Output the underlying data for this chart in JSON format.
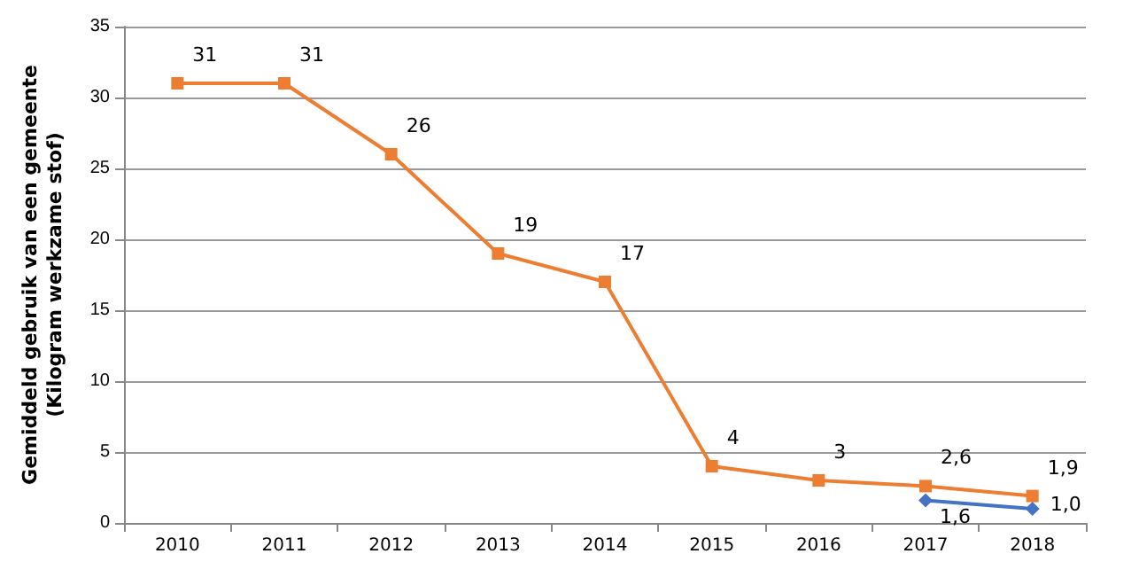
{
  "chart_data": {
    "type": "line",
    "ylabel": "Gemiddeld gebruik van een gemeente\n(Kilogram werkzame stof)",
    "categories": [
      "2010",
      "2011",
      "2012",
      "2013",
      "2014",
      "2015",
      "2016",
      "2017",
      "2018"
    ],
    "series": [
      {
        "color": "#ed7d31",
        "marker": "square",
        "values": [
          31,
          31,
          26,
          19,
          17,
          4,
          3,
          2.6,
          1.9
        ],
        "value_labels": [
          "31",
          "31",
          "26",
          "19",
          "17",
          "4",
          "3",
          "2,6",
          "1,9"
        ]
      },
      {
        "color": "#4472c4",
        "marker": "diamond",
        "values": [
          null,
          null,
          null,
          null,
          null,
          null,
          null,
          1.6,
          1.0
        ],
        "value_labels": [
          null,
          null,
          null,
          null,
          null,
          null,
          null,
          "1,6",
          "1,0"
        ]
      }
    ],
    "ylim": [
      0,
      35
    ],
    "yticks": [
      0,
      5,
      10,
      15,
      20,
      25,
      30,
      35
    ],
    "grid": "y",
    "line_style": "solid"
  }
}
